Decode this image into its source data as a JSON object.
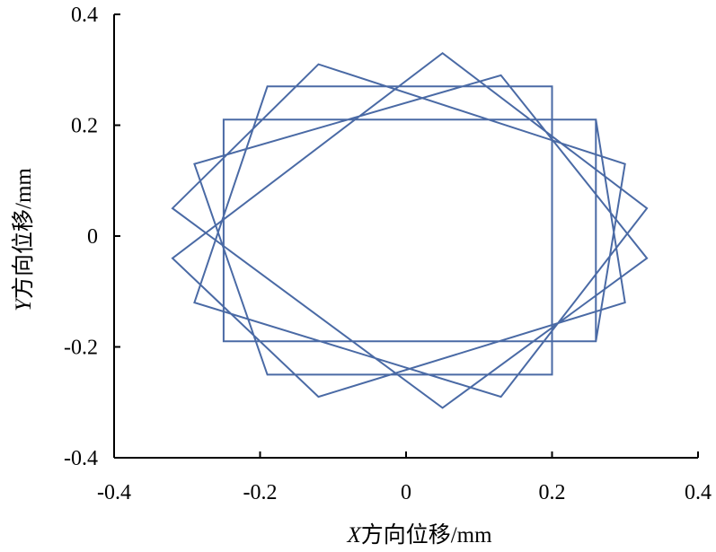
{
  "chart_data": {
    "type": "line",
    "title": "",
    "xlabel": {
      "var": "X",
      "rest": "方向位移/mm"
    },
    "ylabel": {
      "var": "Y",
      "rest": "方向位移/mm"
    },
    "xlim": [
      -0.4,
      0.4
    ],
    "ylim": [
      -0.4,
      0.4
    ],
    "xticks": [
      {
        "value": -0.4,
        "label": "-0.4"
      },
      {
        "value": -0.2,
        "label": "-0.2"
      },
      {
        "value": 0,
        "label": "0"
      },
      {
        "value": 0.2,
        "label": "0.2"
      },
      {
        "value": 0.4,
        "label": "0.4"
      }
    ],
    "yticks": [
      {
        "value": -0.4,
        "label": "-0.4"
      },
      {
        "value": -0.2,
        "label": "-0.2"
      },
      {
        "value": 0,
        "label": "0"
      },
      {
        "value": 0.2,
        "label": "0.2"
      },
      {
        "value": 0.4,
        "label": "0.4"
      }
    ],
    "grid": false,
    "line_color": "#4a6aa5",
    "series": [
      {
        "x": [
          0.26,
          0.26,
          -0.25,
          -0.25,
          0.26,
          0.3,
          -0.12,
          -0.32,
          0.05,
          0.33,
          0.13,
          -0.29,
          -0.19,
          0.2,
          0.2,
          -0.19,
          -0.29,
          0.13,
          0.33,
          0.05,
          -0.32,
          -0.12,
          0.3,
          0.26
        ],
        "y": [
          -0.19,
          0.21,
          0.21,
          -0.19,
          -0.19,
          0.13,
          0.31,
          0.05,
          -0.31,
          -0.04,
          0.29,
          0.13,
          -0.25,
          -0.25,
          0.27,
          0.27,
          -0.12,
          -0.29,
          0.05,
          0.33,
          -0.04,
          -0.29,
          -0.12,
          0.21
        ]
      }
    ]
  }
}
